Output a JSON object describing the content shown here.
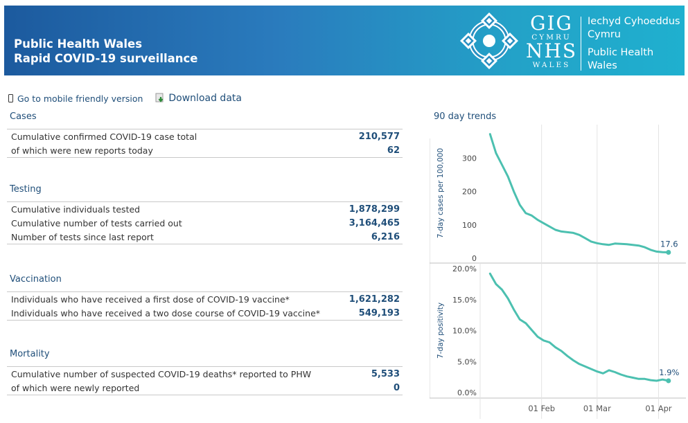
{
  "header": {
    "title_line1": "Public Health Wales",
    "title_line2": "Rapid COVID-19 surveillance",
    "logo": {
      "gig": "GIG",
      "cymru": "CYMRU",
      "nhs": "NHS",
      "wales": "WALES"
    },
    "org": [
      "Iechyd Cyhoeddus",
      "Cymru",
      "Public Health",
      "Wales"
    ]
  },
  "links": {
    "mobile": "Go to mobile friendly version",
    "download": "Download data"
  },
  "sections": [
    {
      "title": "Cases",
      "rows": [
        {
          "label": "Cumulative confirmed COVID-19 case total",
          "value": "210,577"
        },
        {
          "label": "of which were new reports today",
          "value": "62"
        }
      ]
    },
    {
      "title": "Testing",
      "rows": [
        {
          "label": "Cumulative individuals tested",
          "value": "1,878,299"
        },
        {
          "label": "Cumulative number of tests carried out",
          "value": "3,164,465"
        },
        {
          "label": "Number of tests since last report",
          "value": "6,216"
        }
      ]
    },
    {
      "title": "Vaccination",
      "rows": [
        {
          "label": "Individuals who have received a first dose of COVID-19 vaccine*",
          "value": "1,621,282"
        },
        {
          "label": "Individuals who have received a two dose course of COVID-19 vaccine*",
          "value": "549,193"
        }
      ]
    },
    {
      "title": "Mortality",
      "rows": [
        {
          "label": "Cumulative number of suspected COVID-19 deaths* reported to PHW",
          "value": "5,533"
        },
        {
          "label": "of which were newly reported",
          "value": "0"
        }
      ]
    }
  ],
  "trend_title": "90 day trends",
  "colors": {
    "line": "#4cc0b0",
    "text": "#1f4e79"
  },
  "chart_data": [
    {
      "type": "line",
      "ylabel": "7-day cases per 100,000",
      "xlabel": "",
      "ylim": [
        0,
        390
      ],
      "yticks": [
        0,
        100,
        200,
        300
      ],
      "ytick_labels": [
        "0",
        "100",
        "200",
        "300"
      ],
      "end_label": "17.6",
      "x": [
        "2021-01-06",
        "2021-01-09",
        "2021-01-12",
        "2021-01-15",
        "2021-01-18",
        "2021-01-21",
        "2021-01-24",
        "2021-01-27",
        "2021-01-30",
        "2021-02-02",
        "2021-02-05",
        "2021-02-08",
        "2021-02-11",
        "2021-02-14",
        "2021-02-17",
        "2021-02-20",
        "2021-02-23",
        "2021-02-26",
        "2021-03-01",
        "2021-03-04",
        "2021-03-07",
        "2021-03-10",
        "2021-03-13",
        "2021-03-16",
        "2021-03-19",
        "2021-03-22",
        "2021-03-25",
        "2021-03-28",
        "2021-03-31",
        "2021-04-03",
        "2021-04-06"
      ],
      "series": [
        {
          "values": [
            372,
            315,
            280,
            245,
            200,
            160,
            135,
            128,
            115,
            105,
            95,
            85,
            80,
            78,
            76,
            70,
            60,
            50,
            45,
            42,
            40,
            44,
            43,
            42,
            40,
            38,
            33,
            25,
            20,
            18,
            17.6
          ]
        }
      ]
    },
    {
      "type": "line",
      "ylabel": "7-day positivity",
      "xlabel": "",
      "ylim": [
        0,
        20
      ],
      "yticks": [
        0,
        5,
        10,
        15,
        20
      ],
      "ytick_labels": [
        "0.0%",
        "5.0%",
        "10.0%",
        "15.0%",
        "20.0%"
      ],
      "end_label": "1.9%",
      "x": [
        "2021-01-06",
        "2021-01-09",
        "2021-01-12",
        "2021-01-15",
        "2021-01-18",
        "2021-01-21",
        "2021-01-24",
        "2021-01-27",
        "2021-01-30",
        "2021-02-02",
        "2021-02-05",
        "2021-02-08",
        "2021-02-11",
        "2021-02-14",
        "2021-02-17",
        "2021-02-20",
        "2021-02-23",
        "2021-02-26",
        "2021-03-01",
        "2021-03-04",
        "2021-03-07",
        "2021-03-10",
        "2021-03-13",
        "2021-03-16",
        "2021-03-19",
        "2021-03-22",
        "2021-03-25",
        "2021-03-28",
        "2021-03-31",
        "2021-04-03",
        "2021-04-06"
      ],
      "series": [
        {
          "values": [
            19.2,
            17.5,
            16.6,
            15.2,
            13.4,
            11.8,
            11.2,
            10.1,
            9.0,
            8.4,
            8.1,
            7.3,
            6.7,
            5.9,
            5.2,
            4.6,
            4.2,
            3.8,
            3.4,
            3.1,
            3.6,
            3.3,
            2.9,
            2.6,
            2.4,
            2.2,
            2.2,
            2.0,
            1.9,
            2.1,
            1.9
          ]
        }
      ]
    }
  ],
  "x_axis": {
    "range": [
      "2021-01-01",
      "2021-04-12"
    ],
    "ticks": [
      "2021-02-01",
      "2021-03-01",
      "2021-04-01"
    ],
    "tick_labels": [
      "01 Feb",
      "01 Mar",
      "01 Apr"
    ]
  }
}
